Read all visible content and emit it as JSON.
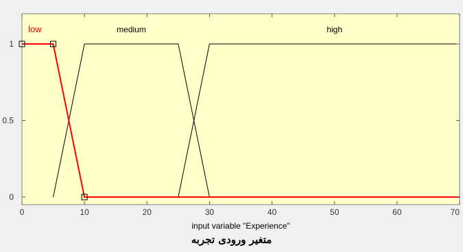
{
  "chart_data": {
    "type": "line",
    "title": "",
    "xlabel": "input variable \"Experience\"",
    "ylabel": "",
    "xlim": [
      0,
      70
    ],
    "ylim": [
      0,
      1
    ],
    "x_ticks": [
      0,
      10,
      20,
      30,
      40,
      50,
      60,
      70
    ],
    "y_ticks": [
      0,
      0.5,
      1
    ],
    "x_tick_labels": [
      "0",
      "10",
      "20",
      "30",
      "40",
      "50",
      "60",
      "70"
    ],
    "y_tick_labels": [
      "0",
      "0.5",
      "1"
    ],
    "grid": false,
    "series": [
      {
        "name": "low",
        "x": [
          0,
          5,
          10,
          70
        ],
        "y": [
          1,
          1,
          0,
          0
        ],
        "selected": true,
        "handles_at": [
          0,
          5,
          10
        ]
      },
      {
        "name": "medium",
        "x": [
          5,
          10,
          25,
          30
        ],
        "y": [
          0,
          1,
          1,
          0
        ],
        "selected": false
      },
      {
        "name": "high",
        "x": [
          25,
          30,
          70
        ],
        "y": [
          0,
          1,
          1
        ],
        "selected": false
      }
    ],
    "label_x": {
      "low": 1,
      "medium": 17.5,
      "high": 50
    }
  },
  "caption": "متغیر ورودی تجربه",
  "colors": {
    "plot_bg": "#ffffc8",
    "selected": "#ff0000",
    "normal": "#000000",
    "outer_bg": "#f0f0f0"
  }
}
